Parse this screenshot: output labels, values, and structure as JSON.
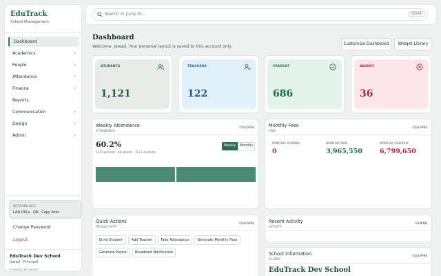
{
  "sidebar": {
    "brand": "EduTrack",
    "brand_sub": "School Management",
    "items": [
      {
        "label": "Dashboard",
        "active": true,
        "chevron": false
      },
      {
        "label": "Academics",
        "chevron": true
      },
      {
        "label": "People",
        "chevron": true
      },
      {
        "label": "Attendance",
        "chevron": true
      },
      {
        "label": "Finance",
        "chevron": true
      },
      {
        "label": "Reports",
        "chevron": false
      },
      {
        "label": "Communication",
        "chevron": true
      },
      {
        "label": "Design",
        "chevron": true
      },
      {
        "label": "Admin",
        "chevron": true
      }
    ],
    "chevron_glyph": "›",
    "network_title": "NETWORK INFO",
    "network_links": "LAN URLs · QR · Copy links",
    "change_password": "Change Password",
    "logout": "Logout",
    "school": "EduTrack Dev School",
    "role": "Jawad · Principal",
    "powered": "POWERED BY DRAKRO"
  },
  "search": {
    "placeholder": "Search or jump to…",
    "shortcut": "Ctrl+K"
  },
  "page": {
    "title": "Dashboard",
    "subtitle": "Welcome, Jawad. Your personal layout is saved to this account only.",
    "customize": "Customize Dashboard",
    "widgets": "Widget Library"
  },
  "stats": [
    {
      "label": "STUDENTS",
      "value": "1,121",
      "bg": "#e7ece9",
      "fg": "#1f5e4b",
      "icon": "users-icon"
    },
    {
      "label": "TEACHERS",
      "value": "122",
      "bg": "#e2f0fa",
      "fg": "#1d5f8a",
      "icon": "teacher-icon"
    },
    {
      "label": "PRESENT",
      "value": "686",
      "bg": "#e3f3ea",
      "fg": "#1f6b4d",
      "icon": "check-circle-icon"
    },
    {
      "label": "ABSENT",
      "value": "36",
      "bg": "#fbe7ea",
      "fg": "#a8283c",
      "icon": "x-circle-icon"
    }
  ],
  "attendance": {
    "title": "Weekly Attendance",
    "sub": "ATTENDANCE",
    "collapse": "COLLAPSE",
    "percent": "60.2%",
    "summary": "1255 present · 86 absent · 1121 students",
    "weekly": "Weekly",
    "monthly": "Monthly",
    "bars": [
      100,
      100
    ]
  },
  "fees": {
    "title": "Monthly Fees",
    "sub": "FEES",
    "collapse": "COLLAPSE",
    "items": [
      {
        "label": "MONTHLY PENDING",
        "value": "0",
        "color": "#a0452a"
      },
      {
        "label": "MONTHLY PAID",
        "value": "3,965,550",
        "color": "#1f6b4d"
      },
      {
        "label": "MONTHLY OVERDUE",
        "value": "6,799,650",
        "color": "#a8283c"
      }
    ]
  },
  "quick": {
    "title": "Quick Actions",
    "sub": "PRODUCTIVITY",
    "collapse": "COLLAPSE",
    "actions": [
      "Enrol Student",
      "Add Teacher",
      "Take Attendance",
      "Generate Monthly Fees",
      "Generate Payroll",
      "Broadcast Notification"
    ]
  },
  "activity": {
    "title": "Recent Activity",
    "sub": "ACTIVITY",
    "expand": "EXPAND"
  },
  "schoolinfo": {
    "title": "School Information",
    "sub": "SCHOOL",
    "collapse": "COLLAPSE",
    "name": "EduTrack Dev School"
  }
}
